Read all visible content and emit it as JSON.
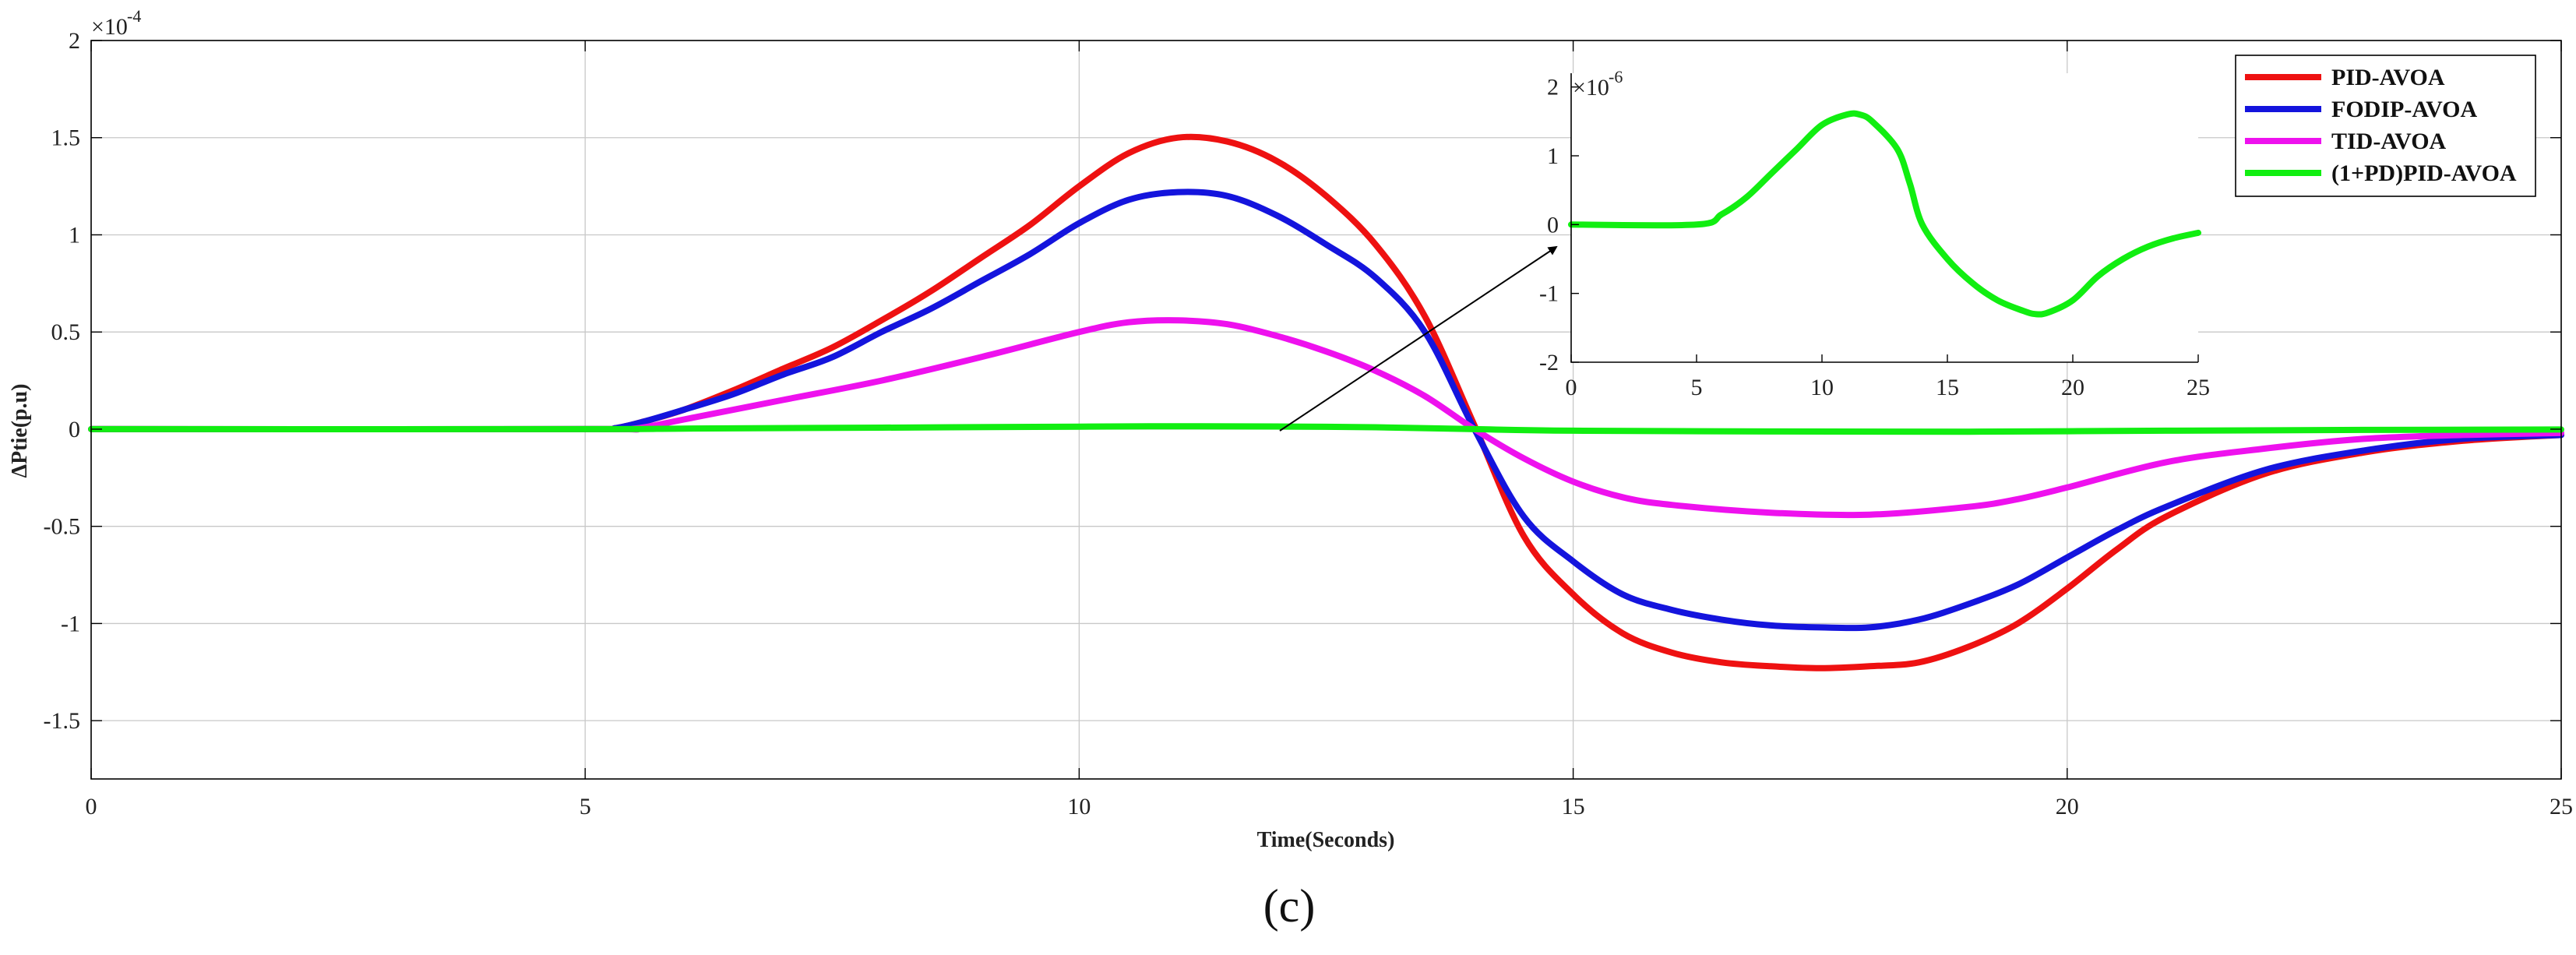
{
  "chart_data": {
    "type": "line",
    "main": {
      "xlabel": "Time(Seconds)",
      "ylabel": "ΔPtie(p.u)",
      "xlim": [
        0,
        25
      ],
      "ylim": [
        -1.8,
        2.0
      ],
      "x_ticks": [
        0,
        5,
        10,
        15,
        20,
        25
      ],
      "x_tick_labels": [
        "0",
        "5",
        "10",
        "15",
        "20",
        "25"
      ],
      "y_ticks": [
        2,
        1.5,
        1,
        0.5,
        0,
        -0.5,
        -1,
        -1.5
      ],
      "y_tick_labels": [
        "2",
        "1.5",
        "1",
        "0.5",
        "0",
        "-0.5",
        "-1",
        "-1.5"
      ],
      "exponent_base": "×10",
      "exponent_power": "-4",
      "grid": true,
      "legend_position": "top-right",
      "series": [
        {
          "name": "PID-AVOA",
          "color": "#ee1111",
          "points": [
            [
              0,
              0
            ],
            [
              5,
              0
            ],
            [
              5.3,
              0.005
            ],
            [
              5.6,
              0.04
            ],
            [
              6,
              0.1
            ],
            [
              6.5,
              0.2
            ],
            [
              7,
              0.31
            ],
            [
              7.5,
              0.42
            ],
            [
              8,
              0.56
            ],
            [
              8.5,
              0.71
            ],
            [
              9,
              0.88
            ],
            [
              9.5,
              1.05
            ],
            [
              10,
              1.25
            ],
            [
              10.5,
              1.42
            ],
            [
              11,
              1.5
            ],
            [
              11.5,
              1.48
            ],
            [
              12,
              1.38
            ],
            [
              12.5,
              1.2
            ],
            [
              13,
              0.95
            ],
            [
              13.5,
              0.58
            ],
            [
              14,
              0.02
            ],
            [
              14.5,
              -0.55
            ],
            [
              15,
              -0.85
            ],
            [
              15.5,
              -1.05
            ],
            [
              16,
              -1.15
            ],
            [
              16.5,
              -1.2
            ],
            [
              17,
              -1.22
            ],
            [
              17.5,
              -1.23
            ],
            [
              18,
              -1.22
            ],
            [
              18.5,
              -1.2
            ],
            [
              19,
              -1.12
            ],
            [
              19.5,
              -1.0
            ],
            [
              20,
              -0.82
            ],
            [
              20.5,
              -0.62
            ],
            [
              21,
              -0.45
            ],
            [
              22,
              -0.23
            ],
            [
              23,
              -0.12
            ],
            [
              24,
              -0.06
            ],
            [
              25,
              -0.03
            ]
          ]
        },
        {
          "name": "FODIP-AVOA",
          "color": "#1414dd",
          "points": [
            [
              0,
              0
            ],
            [
              5,
              0
            ],
            [
              5.3,
              0.005
            ],
            [
              5.6,
              0.04
            ],
            [
              6,
              0.1
            ],
            [
              6.5,
              0.18
            ],
            [
              7,
              0.28
            ],
            [
              7.5,
              0.37
            ],
            [
              8,
              0.5
            ],
            [
              8.5,
              0.62
            ],
            [
              9,
              0.76
            ],
            [
              9.5,
              0.9
            ],
            [
              10,
              1.06
            ],
            [
              10.5,
              1.18
            ],
            [
              11,
              1.22
            ],
            [
              11.5,
              1.2
            ],
            [
              12,
              1.1
            ],
            [
              12.5,
              0.95
            ],
            [
              13,
              0.78
            ],
            [
              13.5,
              0.5
            ],
            [
              14,
              0.0
            ],
            [
              14.5,
              -0.45
            ],
            [
              15,
              -0.68
            ],
            [
              15.5,
              -0.85
            ],
            [
              16,
              -0.93
            ],
            [
              16.5,
              -0.98
            ],
            [
              17,
              -1.01
            ],
            [
              17.5,
              -1.02
            ],
            [
              18,
              -1.02
            ],
            [
              18.5,
              -0.98
            ],
            [
              19,
              -0.9
            ],
            [
              19.5,
              -0.8
            ],
            [
              20,
              -0.66
            ],
            [
              20.5,
              -0.52
            ],
            [
              21,
              -0.4
            ],
            [
              22,
              -0.21
            ],
            [
              23,
              -0.11
            ],
            [
              24,
              -0.05
            ],
            [
              25,
              -0.03
            ]
          ]
        },
        {
          "name": "TID-AVOA",
          "color": "#ee11ee",
          "points": [
            [
              0,
              0
            ],
            [
              5,
              0
            ],
            [
              5.5,
              0.003
            ],
            [
              6,
              0.05
            ],
            [
              7,
              0.15
            ],
            [
              8,
              0.25
            ],
            [
              9,
              0.37
            ],
            [
              10,
              0.5
            ],
            [
              10.5,
              0.55
            ],
            [
              11,
              0.56
            ],
            [
              11.5,
              0.54
            ],
            [
              12,
              0.48
            ],
            [
              12.5,
              0.4
            ],
            [
              13,
              0.3
            ],
            [
              13.5,
              0.17
            ],
            [
              14,
              0.0
            ],
            [
              14.5,
              -0.15
            ],
            [
              15,
              -0.27
            ],
            [
              15.5,
              -0.35
            ],
            [
              16,
              -0.39
            ],
            [
              17,
              -0.43
            ],
            [
              18,
              -0.44
            ],
            [
              19,
              -0.4
            ],
            [
              19.5,
              -0.36
            ],
            [
              20,
              -0.3
            ],
            [
              21,
              -0.17
            ],
            [
              22,
              -0.1
            ],
            [
              23,
              -0.05
            ],
            [
              24,
              -0.03
            ],
            [
              25,
              -0.02
            ]
          ]
        },
        {
          "name": "(1+PD)PID-AVOA",
          "color": "#11ee11",
          "points": [
            [
              0,
              0
            ],
            [
              5,
              0
            ],
            [
              6,
              0.003
            ],
            [
              8,
              0.008
            ],
            [
              10,
              0.013
            ],
            [
              11,
              0.015
            ],
            [
              12,
              0.014
            ],
            [
              13,
              0.01
            ],
            [
              14,
              0.0
            ],
            [
              15,
              -0.008
            ],
            [
              17,
              -0.012
            ],
            [
              19,
              -0.013
            ],
            [
              21,
              -0.008
            ],
            [
              23,
              -0.004
            ],
            [
              25,
              -0.002
            ]
          ]
        }
      ]
    },
    "inset": {
      "xlim": [
        0,
        25
      ],
      "ylim": [
        -2,
        2.2
      ],
      "x_ticks": [
        0,
        5,
        10,
        15,
        20,
        25
      ],
      "x_tick_labels": [
        "0",
        "5",
        "10",
        "15",
        "20",
        "25"
      ],
      "y_ticks": [
        2,
        1,
        0,
        -1,
        -2
      ],
      "y_tick_labels": [
        "2",
        "1",
        "0",
        "-1",
        "-2"
      ],
      "exponent_base": "×10",
      "exponent_power": "-6",
      "series": [
        {
          "name": "(1+PD)PID-AVOA",
          "color": "#11ee11",
          "points": [
            [
              0,
              0
            ],
            [
              5,
              0
            ],
            [
              6,
              0.15
            ],
            [
              7,
              0.4
            ],
            [
              8,
              0.75
            ],
            [
              9,
              1.1
            ],
            [
              10,
              1.45
            ],
            [
              11,
              1.6
            ],
            [
              11.5,
              1.6
            ],
            [
              12,
              1.5
            ],
            [
              13,
              1.1
            ],
            [
              13.5,
              0.6
            ],
            [
              14,
              0.0
            ],
            [
              15,
              -0.5
            ],
            [
              16,
              -0.85
            ],
            [
              17,
              -1.1
            ],
            [
              18,
              -1.25
            ],
            [
              18.5,
              -1.3
            ],
            [
              19,
              -1.28
            ],
            [
              20,
              -1.1
            ],
            [
              21,
              -0.75
            ],
            [
              22,
              -0.5
            ],
            [
              23,
              -0.32
            ],
            [
              24,
              -0.2
            ],
            [
              25,
              -0.12
            ]
          ]
        }
      ]
    },
    "panel_label": "(c)"
  }
}
